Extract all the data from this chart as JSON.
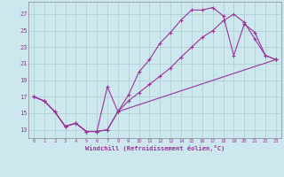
{
  "xlabel": "Windchill (Refroidissement éolien,°C)",
  "bg_color": "#cce8ee",
  "grid_color": "#aacccc",
  "line_color": "#993399",
  "xlim": [
    -0.5,
    23.5
  ],
  "ylim": [
    12.0,
    28.5
  ],
  "xticks": [
    0,
    1,
    2,
    3,
    4,
    5,
    6,
    7,
    8,
    9,
    10,
    11,
    12,
    13,
    14,
    15,
    16,
    17,
    18,
    19,
    20,
    21,
    22,
    23
  ],
  "yticks": [
    13,
    15,
    17,
    19,
    21,
    23,
    25,
    27
  ],
  "line1_x": [
    0,
    1,
    2,
    3,
    4,
    5,
    6,
    7,
    8,
    9,
    10,
    11,
    12,
    13,
    14,
    15,
    16,
    17,
    18,
    19,
    20,
    21,
    22,
    23
  ],
  "line1_y": [
    17.0,
    16.5,
    15.2,
    13.4,
    13.8,
    12.8,
    12.8,
    13.0,
    15.2,
    17.2,
    20.0,
    21.5,
    23.5,
    24.8,
    26.3,
    27.5,
    27.5,
    27.8,
    26.8,
    22.0,
    25.8,
    24.8,
    22.0,
    21.5
  ],
  "line2_x": [
    0,
    1,
    2,
    3,
    4,
    5,
    6,
    7,
    8,
    9,
    10,
    11,
    12,
    13,
    14,
    15,
    16,
    17,
    18,
    19,
    20,
    21,
    22,
    23
  ],
  "line2_y": [
    17.0,
    16.5,
    15.2,
    13.4,
    13.8,
    12.8,
    12.8,
    18.2,
    15.2,
    16.5,
    17.5,
    18.5,
    19.5,
    20.5,
    21.8,
    23.0,
    24.2,
    25.0,
    26.2,
    27.0,
    26.0,
    24.0,
    22.0,
    21.5
  ],
  "line3_x": [
    0,
    1,
    2,
    3,
    4,
    5,
    6,
    7,
    8,
    23
  ],
  "line3_y": [
    17.0,
    16.5,
    15.2,
    13.4,
    13.8,
    12.8,
    12.8,
    13.0,
    15.2,
    21.5
  ]
}
